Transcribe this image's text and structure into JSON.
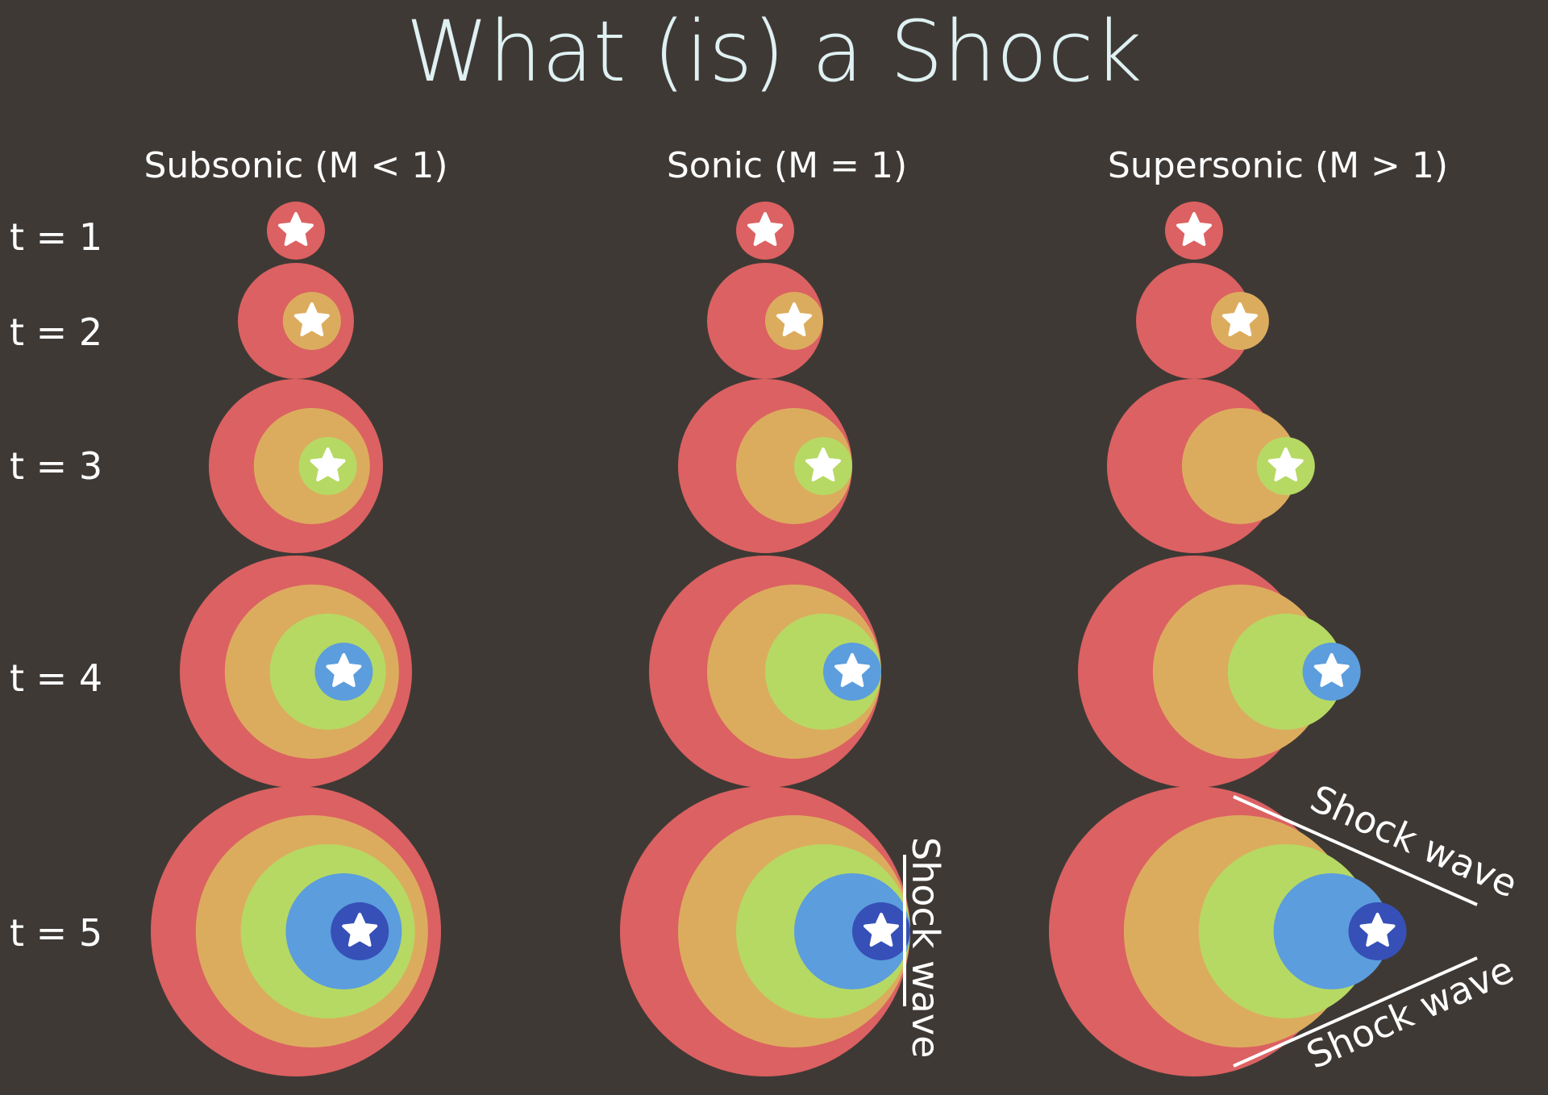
{
  "title": "What (is) a Shock",
  "columns": [
    {
      "id": "subsonic",
      "label": "Subsonic (M < 1)",
      "mach_relation": "M < 1"
    },
    {
      "id": "sonic",
      "label": "Sonic (M = 1)",
      "mach_relation": "M = 1"
    },
    {
      "id": "supersonic",
      "label": "Supersonic (M > 1)",
      "mach_relation": "M > 1"
    }
  ],
  "rows": [
    "t = 1",
    "t = 2",
    "t = 3",
    "t = 4",
    "t = 5"
  ],
  "wave_colors": [
    "#dc6162",
    "#dcac5e",
    "#b6d963",
    "#5c9ddd",
    "#3650b8"
  ],
  "source_icon": "star-icon",
  "background_color": "#3f3935",
  "title_color": "#dff1f2",
  "annotations": {
    "sonic_shock": "Shock wave",
    "supersonic_shock_upper": "Shock wave",
    "supersonic_shock_lower": "Shock wave"
  }
}
